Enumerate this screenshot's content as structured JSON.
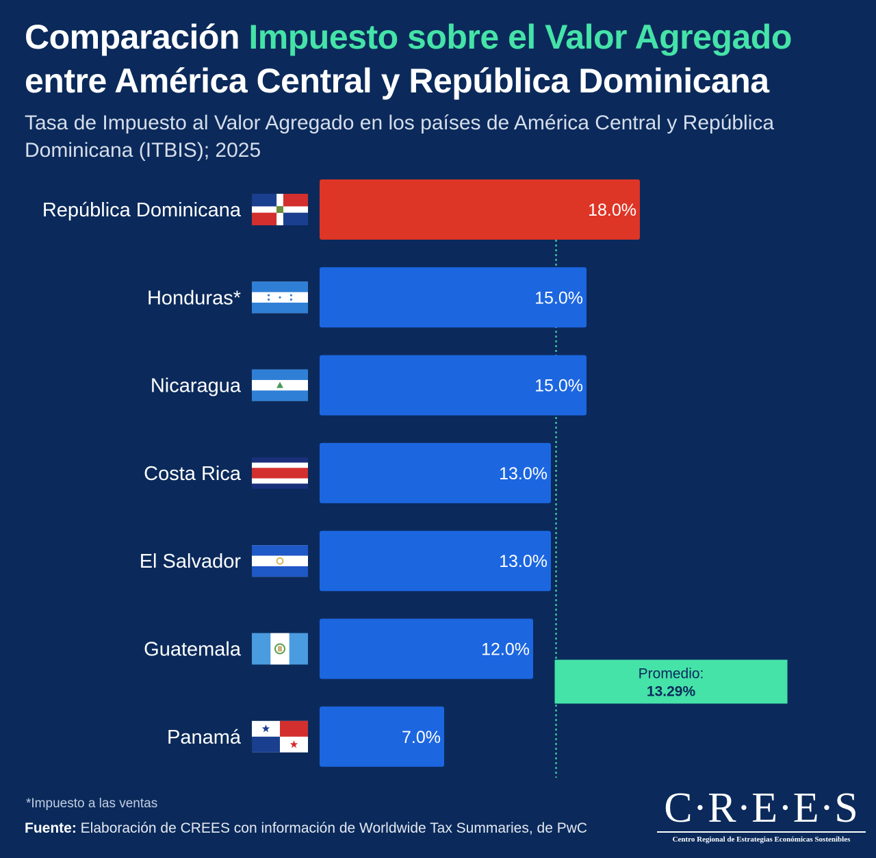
{
  "header": {
    "title_lead": "Comparación ",
    "title_accent": "Impuesto sobre el Valor Agregado",
    "title_tail": "entre América Central y República Dominicana",
    "subtitle": "Tasa de Impuesto al Valor Agregado en los países de América Central y República Dominicana (ITBIS); 2025"
  },
  "chart_data": {
    "type": "bar",
    "orientation": "horizontal",
    "categories": [
      "República Dominicana",
      "Honduras*",
      "Nicaragua",
      "Costa Rica",
      "El Salvador",
      "Guatemala",
      "Panamá"
    ],
    "values": [
      18.0,
      15.0,
      15.0,
      13.0,
      13.0,
      12.0,
      7.0
    ],
    "value_labels": [
      "18.0%",
      "15.0%",
      "15.0%",
      "13.0%",
      "13.0%",
      "12.0%",
      "7.0%"
    ],
    "highlight_index": 0,
    "colors": {
      "highlight": "#dd3526",
      "default": "#1c66e0",
      "average": "#45e3a8"
    },
    "flags": [
      "dominican-republic-flag",
      "honduras-flag",
      "nicaragua-flag",
      "costa-rica-flag",
      "el-salvador-flag",
      "guatemala-flag",
      "panama-flag"
    ],
    "average": {
      "value": 13.29,
      "label": "Promedio:",
      "value_label": "13.29%"
    },
    "xlim": [
      0,
      18
    ],
    "grid": false,
    "legend": "none"
  },
  "footer": {
    "footnote": "*Impuesto a las ventas",
    "source_label": "Fuente:",
    "source_text": " Elaboración de CREES con información de Worldwide Tax Summaries, de PwC"
  },
  "logo": {
    "name": "C·R·E·E·S",
    "tagline": "Centro Regional de Estrategias Económicas Sostenibles"
  }
}
